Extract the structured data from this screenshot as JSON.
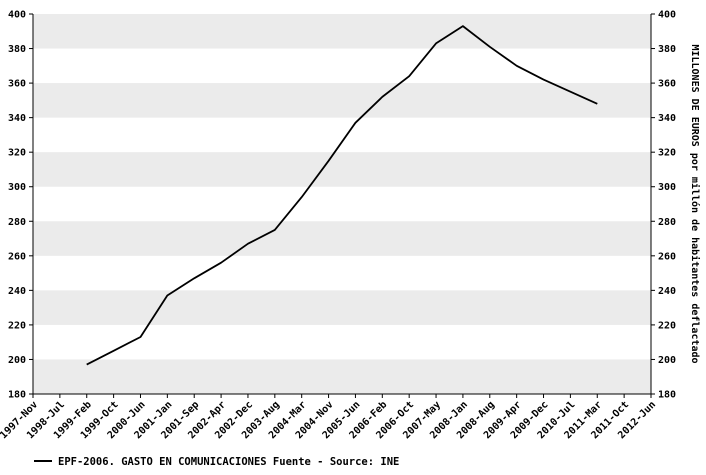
{
  "chart_data": {
    "type": "line",
    "title": "",
    "categories": [
      "1997-Nov",
      "1998-Jul",
      "1999-Feb",
      "1999-Oct",
      "2000-Jun",
      "2001-Jan",
      "2001-Sep",
      "2002-Apr",
      "2002-Dec",
      "2003-Aug",
      "2004-Mar",
      "2004-Nov",
      "2005-Jun",
      "2006-Feb",
      "2006-Oct",
      "2007-May",
      "2008-Jan",
      "2008-Aug",
      "2009-Apr",
      "2009-Dec",
      "2010-Jul",
      "2011-Mar",
      "2011-Oct",
      "2012-Jun"
    ],
    "series": [
      {
        "name": "EPF-2006. GASTO EN COMUNICACIONES  Fuente - Source: INE",
        "color": "#000000",
        "values": [
          null,
          null,
          197,
          205,
          213,
          237,
          247,
          256,
          267,
          275,
          294,
          315,
          337,
          352,
          364,
          383,
          393,
          381,
          370,
          362,
          355,
          348,
          null,
          null
        ]
      }
    ],
    "ylim": [
      180,
      400
    ],
    "ytick_step": 20,
    "yticks": [
      180,
      200,
      220,
      240,
      260,
      280,
      300,
      320,
      340,
      360,
      380,
      400
    ],
    "ylabel_right": "MILLONES DE EUROS por millón de habitantes deflactado",
    "legend": {
      "position": "bottom-left",
      "label": "EPF-2006. GASTO EN COMUNICACIONES  Fuente - Source: INE"
    },
    "grid": "horizontal-striped-bands",
    "xlabel_rotation_deg": -45,
    "colors": {
      "line": "#000000",
      "band": "#ebebeb",
      "background": "#ffffff",
      "axis": "#000000",
      "text": "#000000"
    }
  }
}
